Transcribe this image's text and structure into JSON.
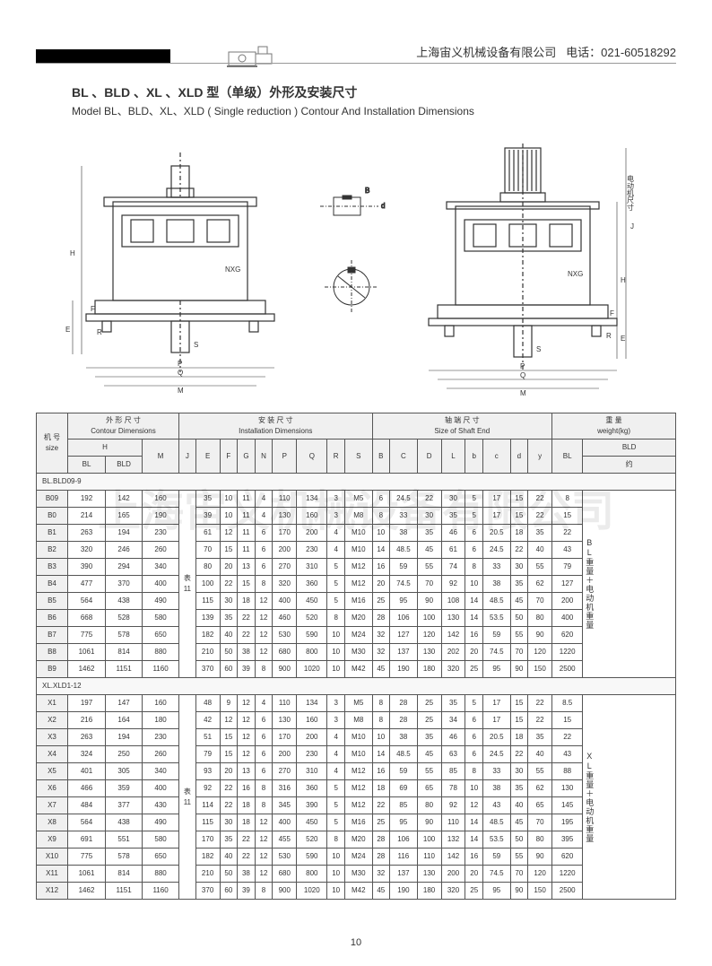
{
  "header": {
    "company": "上海宙义机械设备有限公司",
    "phone_label": "电话：",
    "phone": "021-60518292"
  },
  "title": {
    "cn": "BL 、BLD 、XL 、XLD 型（单级）外形及安装尺寸",
    "en": "Model BL、BLD、XL、XLD ( Single reduction ) Contour And Installation Dimensions"
  },
  "diagram_labels": {
    "nxg": "NXG",
    "h": "H",
    "f": "F",
    "e": "E",
    "r": "R",
    "s": "S",
    "p": "P",
    "q": "Q",
    "m": "M",
    "b": "B",
    "c": "C",
    "d": "d",
    "j": "J",
    "motor_label": "电动机尺寸"
  },
  "table": {
    "header_groups": {
      "size_cn": "机 号",
      "size_en": "size",
      "contour_cn": "外 形 尺 寸",
      "contour_en": "Contour Dimensions",
      "install_cn": "安 装 尺 寸",
      "install_en": "Installation  Dimensions",
      "shaft_cn": "轴 端 尺 寸",
      "shaft_en": "Size of Shaft  End",
      "weight_cn": "重  量",
      "weight_en": "weight(kg)"
    },
    "subheaders": {
      "h": "H",
      "m": "M",
      "j": "J",
      "e": "E",
      "f": "F",
      "g": "G",
      "n": "N",
      "p": "P",
      "q": "Q",
      "r": "R",
      "s": "S",
      "b_cap": "B",
      "c_cap": "C",
      "d_cap": "D",
      "l_cap": "L",
      "b_low": "b",
      "c_low": "c",
      "d_low": "d",
      "y": "y",
      "bl": "BL",
      "bld": "BLD",
      "bld_about": "约"
    },
    "j_note": "表\n11",
    "xl_j_note": "表\n11",
    "section1_label": "BL.BLD09-9",
    "section2_label": "XL.XLD1-12",
    "bl_weight_note": "BL\n重\n量\n＋\n电\n动\n机\n重\n量",
    "xl_weight_note": "XL\n重\n量\n＋\n电\n动\n机\n重\n量",
    "rows_bl": [
      {
        "id": "B09",
        "bl": "192",
        "bld": "142",
        "m": "160",
        "e": "35",
        "f": "10",
        "g": "11",
        "n": "4",
        "p": "110",
        "q": "134",
        "r": "3",
        "s": "M5",
        "b": "6",
        "c": "24.5",
        "d": "22",
        "l": "30",
        "b2": "5",
        "c2": "17",
        "d2": "15",
        "y": "22",
        "wbl": "8"
      },
      {
        "id": "B0",
        "bl": "214",
        "bld": "165",
        "m": "190",
        "e": "39",
        "f": "10",
        "g": "11",
        "n": "4",
        "p": "130",
        "q": "160",
        "r": "3",
        "s": "M8",
        "b": "8",
        "c": "33",
        "d": "30",
        "l": "35",
        "b2": "5",
        "c2": "17",
        "d2": "15",
        "y": "22",
        "wbl": "15"
      },
      {
        "id": "B1",
        "bl": "263",
        "bld": "194",
        "m": "230",
        "e": "61",
        "f": "12",
        "g": "11",
        "n": "6",
        "p": "170",
        "q": "200",
        "r": "4",
        "s": "M10",
        "b": "10",
        "c": "38",
        "d": "35",
        "l": "46",
        "b2": "6",
        "c2": "20.5",
        "d2": "18",
        "y": "35",
        "wbl": "22"
      },
      {
        "id": "B2",
        "bl": "320",
        "bld": "246",
        "m": "260",
        "e": "70",
        "f": "15",
        "g": "11",
        "n": "6",
        "p": "200",
        "q": "230",
        "r": "4",
        "s": "M10",
        "b": "14",
        "c": "48.5",
        "d": "45",
        "l": "61",
        "b2": "6",
        "c2": "24.5",
        "d2": "22",
        "y": "40",
        "wbl": "43"
      },
      {
        "id": "B3",
        "bl": "390",
        "bld": "294",
        "m": "340",
        "e": "80",
        "f": "20",
        "g": "13",
        "n": "6",
        "p": "270",
        "q": "310",
        "r": "5",
        "s": "M12",
        "b": "16",
        "c": "59",
        "d": "55",
        "l": "74",
        "b2": "8",
        "c2": "33",
        "d2": "30",
        "y": "55",
        "wbl": "79"
      },
      {
        "id": "B4",
        "bl": "477",
        "bld": "370",
        "m": "400",
        "e": "100",
        "f": "22",
        "g": "15",
        "n": "8",
        "p": "320",
        "q": "360",
        "r": "5",
        "s": "M12",
        "b": "20",
        "c": "74.5",
        "d": "70",
        "l": "92",
        "b2": "10",
        "c2": "38",
        "d2": "35",
        "y": "62",
        "wbl": "127"
      },
      {
        "id": "B5",
        "bl": "564",
        "bld": "438",
        "m": "490",
        "e": "115",
        "f": "30",
        "g": "18",
        "n": "12",
        "p": "400",
        "q": "450",
        "r": "5",
        "s": "M16",
        "b": "25",
        "c": "95",
        "d": "90",
        "l": "108",
        "b2": "14",
        "c2": "48.5",
        "d2": "45",
        "y": "70",
        "wbl": "200"
      },
      {
        "id": "B6",
        "bl": "668",
        "bld": "528",
        "m": "580",
        "e": "139",
        "f": "35",
        "g": "22",
        "n": "12",
        "p": "460",
        "q": "520",
        "r": "8",
        "s": "M20",
        "b": "28",
        "c": "106",
        "d": "100",
        "l": "130",
        "b2": "14",
        "c2": "53.5",
        "d2": "50",
        "y": "80",
        "wbl": "400"
      },
      {
        "id": "B7",
        "bl": "775",
        "bld": "578",
        "m": "650",
        "e": "182",
        "f": "40",
        "g": "22",
        "n": "12",
        "p": "530",
        "q": "590",
        "r": "10",
        "s": "M24",
        "b": "32",
        "c": "127",
        "d": "120",
        "l": "142",
        "b2": "16",
        "c2": "59",
        "d2": "55",
        "y": "90",
        "wbl": "620"
      },
      {
        "id": "B8",
        "bl": "1061",
        "bld": "814",
        "m": "880",
        "e": "210",
        "f": "50",
        "g": "38",
        "n": "12",
        "p": "680",
        "q": "800",
        "r": "10",
        "s": "M30",
        "b": "32",
        "c": "137",
        "d": "130",
        "l": "202",
        "b2": "20",
        "c2": "74.5",
        "d2": "70",
        "y": "120",
        "wbl": "1220"
      },
      {
        "id": "B9",
        "bl": "1462",
        "bld": "1151",
        "m": "1160",
        "e": "370",
        "f": "60",
        "g": "39",
        "n": "8",
        "p": "900",
        "q": "1020",
        "r": "10",
        "s": "M42",
        "b": "45",
        "c": "190",
        "d": "180",
        "l": "320",
        "b2": "25",
        "c2": "95",
        "d2": "90",
        "y": "150",
        "wbl": "2500"
      }
    ],
    "rows_xl": [
      {
        "id": "X1",
        "bl": "197",
        "bld": "147",
        "m": "160",
        "e": "48",
        "f": "9",
        "g": "12",
        "n": "4",
        "p": "110",
        "q": "134",
        "r": "3",
        "s": "M5",
        "b": "8",
        "c": "28",
        "d": "25",
        "l": "35",
        "b2": "5",
        "c2": "17",
        "d2": "15",
        "y": "22",
        "wbl": "8.5"
      },
      {
        "id": "X2",
        "bl": "216",
        "bld": "164",
        "m": "180",
        "e": "42",
        "f": "12",
        "g": "12",
        "n": "6",
        "p": "130",
        "q": "160",
        "r": "3",
        "s": "M8",
        "b": "8",
        "c": "28",
        "d": "25",
        "l": "34",
        "b2": "6",
        "c2": "17",
        "d2": "15",
        "y": "22",
        "wbl": "15"
      },
      {
        "id": "X3",
        "bl": "263",
        "bld": "194",
        "m": "230",
        "e": "51",
        "f": "15",
        "g": "12",
        "n": "6",
        "p": "170",
        "q": "200",
        "r": "4",
        "s": "M10",
        "b": "10",
        "c": "38",
        "d": "35",
        "l": "46",
        "b2": "6",
        "c2": "20.5",
        "d2": "18",
        "y": "35",
        "wbl": "22"
      },
      {
        "id": "X4",
        "bl": "324",
        "bld": "250",
        "m": "260",
        "e": "79",
        "f": "15",
        "g": "12",
        "n": "6",
        "p": "200",
        "q": "230",
        "r": "4",
        "s": "M10",
        "b": "14",
        "c": "48.5",
        "d": "45",
        "l": "63",
        "b2": "6",
        "c2": "24.5",
        "d2": "22",
        "y": "40",
        "wbl": "43"
      },
      {
        "id": "X5",
        "bl": "401",
        "bld": "305",
        "m": "340",
        "e": "93",
        "f": "20",
        "g": "13",
        "n": "6",
        "p": "270",
        "q": "310",
        "r": "4",
        "s": "M12",
        "b": "16",
        "c": "59",
        "d": "55",
        "l": "85",
        "b2": "8",
        "c2": "33",
        "d2": "30",
        "y": "55",
        "wbl": "88"
      },
      {
        "id": "X6",
        "bl": "466",
        "bld": "359",
        "m": "400",
        "e": "92",
        "f": "22",
        "g": "16",
        "n": "8",
        "p": "316",
        "q": "360",
        "r": "5",
        "s": "M12",
        "b": "18",
        "c": "69",
        "d": "65",
        "l": "78",
        "b2": "10",
        "c2": "38",
        "d2": "35",
        "y": "62",
        "wbl": "130"
      },
      {
        "id": "X7",
        "bl": "484",
        "bld": "377",
        "m": "430",
        "e": "114",
        "f": "22",
        "g": "18",
        "n": "8",
        "p": "345",
        "q": "390",
        "r": "5",
        "s": "M12",
        "b": "22",
        "c": "85",
        "d": "80",
        "l": "92",
        "b2": "12",
        "c2": "43",
        "d2": "40",
        "y": "65",
        "wbl": "145"
      },
      {
        "id": "X8",
        "bl": "564",
        "bld": "438",
        "m": "490",
        "e": "115",
        "f": "30",
        "g": "18",
        "n": "12",
        "p": "400",
        "q": "450",
        "r": "5",
        "s": "M16",
        "b": "25",
        "c": "95",
        "d": "90",
        "l": "110",
        "b2": "14",
        "c2": "48.5",
        "d2": "45",
        "y": "70",
        "wbl": "195"
      },
      {
        "id": "X9",
        "bl": "691",
        "bld": "551",
        "m": "580",
        "e": "170",
        "f": "35",
        "g": "22",
        "n": "12",
        "p": "455",
        "q": "520",
        "r": "8",
        "s": "M20",
        "b": "28",
        "c": "106",
        "d": "100",
        "l": "132",
        "b2": "14",
        "c2": "53.5",
        "d2": "50",
        "y": "80",
        "wbl": "395"
      },
      {
        "id": "X10",
        "bl": "775",
        "bld": "578",
        "m": "650",
        "e": "182",
        "f": "40",
        "g": "22",
        "n": "12",
        "p": "530",
        "q": "590",
        "r": "10",
        "s": "M24",
        "b": "28",
        "c": "116",
        "d": "110",
        "l": "142",
        "b2": "16",
        "c2": "59",
        "d2": "55",
        "y": "90",
        "wbl": "620"
      },
      {
        "id": "X11",
        "bl": "1061",
        "bld": "814",
        "m": "880",
        "e": "210",
        "f": "50",
        "g": "38",
        "n": "12",
        "p": "680",
        "q": "800",
        "r": "10",
        "s": "M30",
        "b": "32",
        "c": "137",
        "d": "130",
        "l": "200",
        "b2": "20",
        "c2": "74.5",
        "d2": "70",
        "y": "120",
        "wbl": "1220"
      },
      {
        "id": "X12",
        "bl": "1462",
        "bld": "1151",
        "m": "1160",
        "e": "370",
        "f": "60",
        "g": "39",
        "n": "8",
        "p": "900",
        "q": "1020",
        "r": "10",
        "s": "M42",
        "b": "45",
        "c": "190",
        "d": "180",
        "l": "320",
        "b2": "25",
        "c2": "95",
        "d2": "90",
        "y": "150",
        "wbl": "2500"
      }
    ]
  },
  "watermark": "上海宙义机械设备有限公司",
  "page_number": "10"
}
